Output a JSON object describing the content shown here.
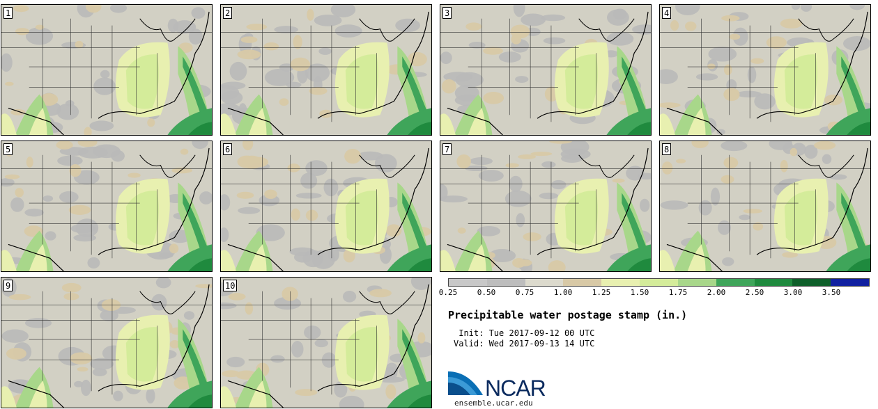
{
  "panels": [
    {
      "label": "1"
    },
    {
      "label": "2"
    },
    {
      "label": "3"
    },
    {
      "label": "4"
    },
    {
      "label": "5"
    },
    {
      "label": "6"
    },
    {
      "label": "7"
    },
    {
      "label": "8"
    },
    {
      "label": "9"
    },
    {
      "label": "10"
    }
  ],
  "legend": {
    "labels": [
      "0.25",
      "0.50",
      "0.75",
      "1.00",
      "1.25",
      "1.50",
      "1.75",
      "2.00",
      "2.50",
      "3.00",
      "3.50"
    ],
    "colors": [
      "#c8c8c8",
      "#bdbdbd",
      "#dcdacd",
      "#d8c9a6",
      "#e8f0b0",
      "#d4ec9a",
      "#a8d78a",
      "#3fa55a",
      "#1f8a3e",
      "#0e5f2a",
      "#1020a0"
    ]
  },
  "title": "Precipitable water postage stamp (in.)",
  "init": " Init: Tue 2017-09-12 00 UTC",
  "valid": "Valid: Wed 2017-09-13 14 UTC",
  "logo": {
    "name": "NCAR",
    "url": "ensemble.ucar.edu"
  }
}
